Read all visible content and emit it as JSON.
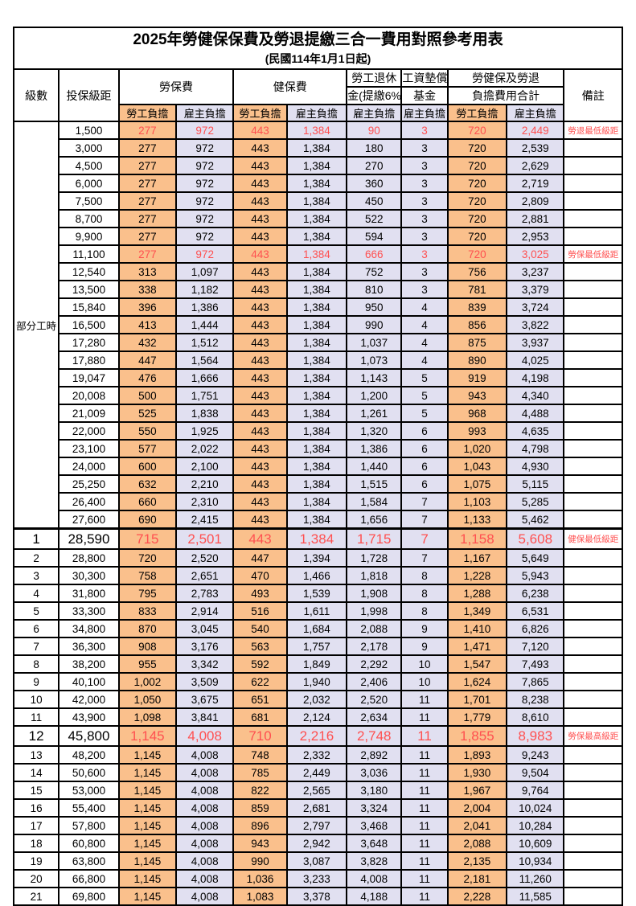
{
  "title": "2025年勞健保保費及勞退提繳三合一費用對照參考用表",
  "subtitle": "(民國114年1月1日起)",
  "header": {
    "level": "級數",
    "bracket": "投保級距",
    "labor_ins": "勞保費",
    "health_ins": "健保費",
    "pension_line1": "勞工退休",
    "pension_line2": "金(提繳6%)",
    "wage_fund_line1": "工資墊償",
    "wage_fund_line2": "基金",
    "total_line1": "勞健保及勞退",
    "total_line2": "負擔費用合計",
    "remark": "備註",
    "employee_share": "勞工負擔",
    "employer_share": "雇主負擔"
  },
  "part_time_label": "部分工時",
  "colors": {
    "employee_col_bg": "#FAC08C",
    "employer_col_bg": "#E1E0F1",
    "highlight_text": "#FF5050",
    "border": "#000000"
  },
  "rows": [
    {
      "level": "",
      "amount": "1,500",
      "ls": "277",
      "le": "972",
      "hs": "443",
      "he": "1,384",
      "pe": "90",
      "wf": "3",
      "ts": "720",
      "te": "2,449",
      "note": "勞退最低級距",
      "red": true,
      "big": false
    },
    {
      "level": "",
      "amount": "3,000",
      "ls": "277",
      "le": "972",
      "hs": "443",
      "he": "1,384",
      "pe": "180",
      "wf": "3",
      "ts": "720",
      "te": "2,539",
      "note": "",
      "red": false,
      "big": false
    },
    {
      "level": "",
      "amount": "4,500",
      "ls": "277",
      "le": "972",
      "hs": "443",
      "he": "1,384",
      "pe": "270",
      "wf": "3",
      "ts": "720",
      "te": "2,629",
      "note": "",
      "red": false,
      "big": false
    },
    {
      "level": "",
      "amount": "6,000",
      "ls": "277",
      "le": "972",
      "hs": "443",
      "he": "1,384",
      "pe": "360",
      "wf": "3",
      "ts": "720",
      "te": "2,719",
      "note": "",
      "red": false,
      "big": false
    },
    {
      "level": "",
      "amount": "7,500",
      "ls": "277",
      "le": "972",
      "hs": "443",
      "he": "1,384",
      "pe": "450",
      "wf": "3",
      "ts": "720",
      "te": "2,809",
      "note": "",
      "red": false,
      "big": false
    },
    {
      "level": "",
      "amount": "8,700",
      "ls": "277",
      "le": "972",
      "hs": "443",
      "he": "1,384",
      "pe": "522",
      "wf": "3",
      "ts": "720",
      "te": "2,881",
      "note": "",
      "red": false,
      "big": false
    },
    {
      "level": "",
      "amount": "9,900",
      "ls": "277",
      "le": "972",
      "hs": "443",
      "he": "1,384",
      "pe": "594",
      "wf": "3",
      "ts": "720",
      "te": "2,953",
      "note": "",
      "red": false,
      "big": false
    },
    {
      "level": "",
      "amount": "11,100",
      "ls": "277",
      "le": "972",
      "hs": "443",
      "he": "1,384",
      "pe": "666",
      "wf": "3",
      "ts": "720",
      "te": "3,025",
      "note": "勞保最低級距",
      "red": true,
      "big": false
    },
    {
      "level": "",
      "amount": "12,540",
      "ls": "313",
      "le": "1,097",
      "hs": "443",
      "he": "1,384",
      "pe": "752",
      "wf": "3",
      "ts": "756",
      "te": "3,237",
      "note": "",
      "red": false,
      "big": false
    },
    {
      "level": "",
      "amount": "13,500",
      "ls": "338",
      "le": "1,182",
      "hs": "443",
      "he": "1,384",
      "pe": "810",
      "wf": "3",
      "ts": "781",
      "te": "3,379",
      "note": "",
      "red": false,
      "big": false
    },
    {
      "level": "",
      "amount": "15,840",
      "ls": "396",
      "le": "1,386",
      "hs": "443",
      "he": "1,384",
      "pe": "950",
      "wf": "4",
      "ts": "839",
      "te": "3,724",
      "note": "",
      "red": false,
      "big": false
    },
    {
      "level": "",
      "amount": "16,500",
      "ls": "413",
      "le": "1,444",
      "hs": "443",
      "he": "1,384",
      "pe": "990",
      "wf": "4",
      "ts": "856",
      "te": "3,822",
      "note": "",
      "red": false,
      "big": false
    },
    {
      "level": "",
      "amount": "17,280",
      "ls": "432",
      "le": "1,512",
      "hs": "443",
      "he": "1,384",
      "pe": "1,037",
      "wf": "4",
      "ts": "875",
      "te": "3,937",
      "note": "",
      "red": false,
      "big": false
    },
    {
      "level": "",
      "amount": "17,880",
      "ls": "447",
      "le": "1,564",
      "hs": "443",
      "he": "1,384",
      "pe": "1,073",
      "wf": "4",
      "ts": "890",
      "te": "4,025",
      "note": "",
      "red": false,
      "big": false
    },
    {
      "level": "",
      "amount": "19,047",
      "ls": "476",
      "le": "1,666",
      "hs": "443",
      "he": "1,384",
      "pe": "1,143",
      "wf": "5",
      "ts": "919",
      "te": "4,198",
      "note": "",
      "red": false,
      "big": false
    },
    {
      "level": "",
      "amount": "20,008",
      "ls": "500",
      "le": "1,751",
      "hs": "443",
      "he": "1,384",
      "pe": "1,200",
      "wf": "5",
      "ts": "943",
      "te": "4,340",
      "note": "",
      "red": false,
      "big": false
    },
    {
      "level": "",
      "amount": "21,009",
      "ls": "525",
      "le": "1,838",
      "hs": "443",
      "he": "1,384",
      "pe": "1,261",
      "wf": "5",
      "ts": "968",
      "te": "4,488",
      "note": "",
      "red": false,
      "big": false
    },
    {
      "level": "",
      "amount": "22,000",
      "ls": "550",
      "le": "1,925",
      "hs": "443",
      "he": "1,384",
      "pe": "1,320",
      "wf": "6",
      "ts": "993",
      "te": "4,635",
      "note": "",
      "red": false,
      "big": false
    },
    {
      "level": "",
      "amount": "23,100",
      "ls": "577",
      "le": "2,022",
      "hs": "443",
      "he": "1,384",
      "pe": "1,386",
      "wf": "6",
      "ts": "1,020",
      "te": "4,798",
      "note": "",
      "red": false,
      "big": false
    },
    {
      "level": "",
      "amount": "24,000",
      "ls": "600",
      "le": "2,100",
      "hs": "443",
      "he": "1,384",
      "pe": "1,440",
      "wf": "6",
      "ts": "1,043",
      "te": "4,930",
      "note": "",
      "red": false,
      "big": false
    },
    {
      "level": "",
      "amount": "25,250",
      "ls": "632",
      "le": "2,210",
      "hs": "443",
      "he": "1,384",
      "pe": "1,515",
      "wf": "6",
      "ts": "1,075",
      "te": "5,115",
      "note": "",
      "red": false,
      "big": false
    },
    {
      "level": "",
      "amount": "26,400",
      "ls": "660",
      "le": "2,310",
      "hs": "443",
      "he": "1,384",
      "pe": "1,584",
      "wf": "7",
      "ts": "1,103",
      "te": "5,285",
      "note": "",
      "red": false,
      "big": false
    },
    {
      "level": "",
      "amount": "27,600",
      "ls": "690",
      "le": "2,415",
      "hs": "443",
      "he": "1,384",
      "pe": "1,656",
      "wf": "7",
      "ts": "1,133",
      "te": "5,462",
      "note": "",
      "red": false,
      "big": false
    },
    {
      "level": "1",
      "amount": "28,590",
      "ls": "715",
      "le": "2,501",
      "hs": "443",
      "he": "1,384",
      "pe": "1,715",
      "wf": "7",
      "ts": "1,158",
      "te": "5,608",
      "note": "健保最低級距",
      "red": true,
      "big": true
    },
    {
      "level": "2",
      "amount": "28,800",
      "ls": "720",
      "le": "2,520",
      "hs": "447",
      "he": "1,394",
      "pe": "1,728",
      "wf": "7",
      "ts": "1,167",
      "te": "5,649",
      "note": "",
      "red": false,
      "big": false
    },
    {
      "level": "3",
      "amount": "30,300",
      "ls": "758",
      "le": "2,651",
      "hs": "470",
      "he": "1,466",
      "pe": "1,818",
      "wf": "8",
      "ts": "1,228",
      "te": "5,943",
      "note": "",
      "red": false,
      "big": false
    },
    {
      "level": "4",
      "amount": "31,800",
      "ls": "795",
      "le": "2,783",
      "hs": "493",
      "he": "1,539",
      "pe": "1,908",
      "wf": "8",
      "ts": "1,288",
      "te": "6,238",
      "note": "",
      "red": false,
      "big": false
    },
    {
      "level": "5",
      "amount": "33,300",
      "ls": "833",
      "le": "2,914",
      "hs": "516",
      "he": "1,611",
      "pe": "1,998",
      "wf": "8",
      "ts": "1,349",
      "te": "6,531",
      "note": "",
      "red": false,
      "big": false
    },
    {
      "level": "6",
      "amount": "34,800",
      "ls": "870",
      "le": "3,045",
      "hs": "540",
      "he": "1,684",
      "pe": "2,088",
      "wf": "9",
      "ts": "1,410",
      "te": "6,826",
      "note": "",
      "red": false,
      "big": false
    },
    {
      "level": "7",
      "amount": "36,300",
      "ls": "908",
      "le": "3,176",
      "hs": "563",
      "he": "1,757",
      "pe": "2,178",
      "wf": "9",
      "ts": "1,471",
      "te": "7,120",
      "note": "",
      "red": false,
      "big": false
    },
    {
      "level": "8",
      "amount": "38,200",
      "ls": "955",
      "le": "3,342",
      "hs": "592",
      "he": "1,849",
      "pe": "2,292",
      "wf": "10",
      "ts": "1,547",
      "te": "7,493",
      "note": "",
      "red": false,
      "big": false
    },
    {
      "level": "9",
      "amount": "40,100",
      "ls": "1,002",
      "le": "3,509",
      "hs": "622",
      "he": "1,940",
      "pe": "2,406",
      "wf": "10",
      "ts": "1,624",
      "te": "7,865",
      "note": "",
      "red": false,
      "big": false
    },
    {
      "level": "10",
      "amount": "42,000",
      "ls": "1,050",
      "le": "3,675",
      "hs": "651",
      "he": "2,032",
      "pe": "2,520",
      "wf": "11",
      "ts": "1,701",
      "te": "8,238",
      "note": "",
      "red": false,
      "big": false
    },
    {
      "level": "11",
      "amount": "43,900",
      "ls": "1,098",
      "le": "3,841",
      "hs": "681",
      "he": "2,124",
      "pe": "2,634",
      "wf": "11",
      "ts": "1,779",
      "te": "8,610",
      "note": "",
      "red": false,
      "big": false
    },
    {
      "level": "12",
      "amount": "45,800",
      "ls": "1,145",
      "le": "4,008",
      "hs": "710",
      "he": "2,216",
      "pe": "2,748",
      "wf": "11",
      "ts": "1,855",
      "te": "8,983",
      "note": "勞保最高級距",
      "red": true,
      "big": true
    },
    {
      "level": "13",
      "amount": "48,200",
      "ls": "1,145",
      "le": "4,008",
      "hs": "748",
      "he": "2,332",
      "pe": "2,892",
      "wf": "11",
      "ts": "1,893",
      "te": "9,243",
      "note": "",
      "red": false,
      "big": false
    },
    {
      "level": "14",
      "amount": "50,600",
      "ls": "1,145",
      "le": "4,008",
      "hs": "785",
      "he": "2,449",
      "pe": "3,036",
      "wf": "11",
      "ts": "1,930",
      "te": "9,504",
      "note": "",
      "red": false,
      "big": false
    },
    {
      "level": "15",
      "amount": "53,000",
      "ls": "1,145",
      "le": "4,008",
      "hs": "822",
      "he": "2,565",
      "pe": "3,180",
      "wf": "11",
      "ts": "1,967",
      "te": "9,764",
      "note": "",
      "red": false,
      "big": false
    },
    {
      "level": "16",
      "amount": "55,400",
      "ls": "1,145",
      "le": "4,008",
      "hs": "859",
      "he": "2,681",
      "pe": "3,324",
      "wf": "11",
      "ts": "2,004",
      "te": "10,024",
      "note": "",
      "red": false,
      "big": false
    },
    {
      "level": "17",
      "amount": "57,800",
      "ls": "1,145",
      "le": "4,008",
      "hs": "896",
      "he": "2,797",
      "pe": "3,468",
      "wf": "11",
      "ts": "2,041",
      "te": "10,284",
      "note": "",
      "red": false,
      "big": false
    },
    {
      "level": "18",
      "amount": "60,800",
      "ls": "1,145",
      "le": "4,008",
      "hs": "943",
      "he": "2,942",
      "pe": "3,648",
      "wf": "11",
      "ts": "2,088",
      "te": "10,609",
      "note": "",
      "red": false,
      "big": false
    },
    {
      "level": "19",
      "amount": "63,800",
      "ls": "1,145",
      "le": "4,008",
      "hs": "990",
      "he": "3,087",
      "pe": "3,828",
      "wf": "11",
      "ts": "2,135",
      "te": "10,934",
      "note": "",
      "red": false,
      "big": false
    },
    {
      "level": "20",
      "amount": "66,800",
      "ls": "1,145",
      "le": "4,008",
      "hs": "1,036",
      "he": "3,233",
      "pe": "4,008",
      "wf": "11",
      "ts": "2,181",
      "te": "11,260",
      "note": "",
      "red": false,
      "big": false
    },
    {
      "level": "21",
      "amount": "69,800",
      "ls": "1,145",
      "le": "4,008",
      "hs": "1,083",
      "he": "3,378",
      "pe": "4,188",
      "wf": "11",
      "ts": "2,228",
      "te": "11,585",
      "note": "",
      "red": false,
      "big": false
    }
  ]
}
